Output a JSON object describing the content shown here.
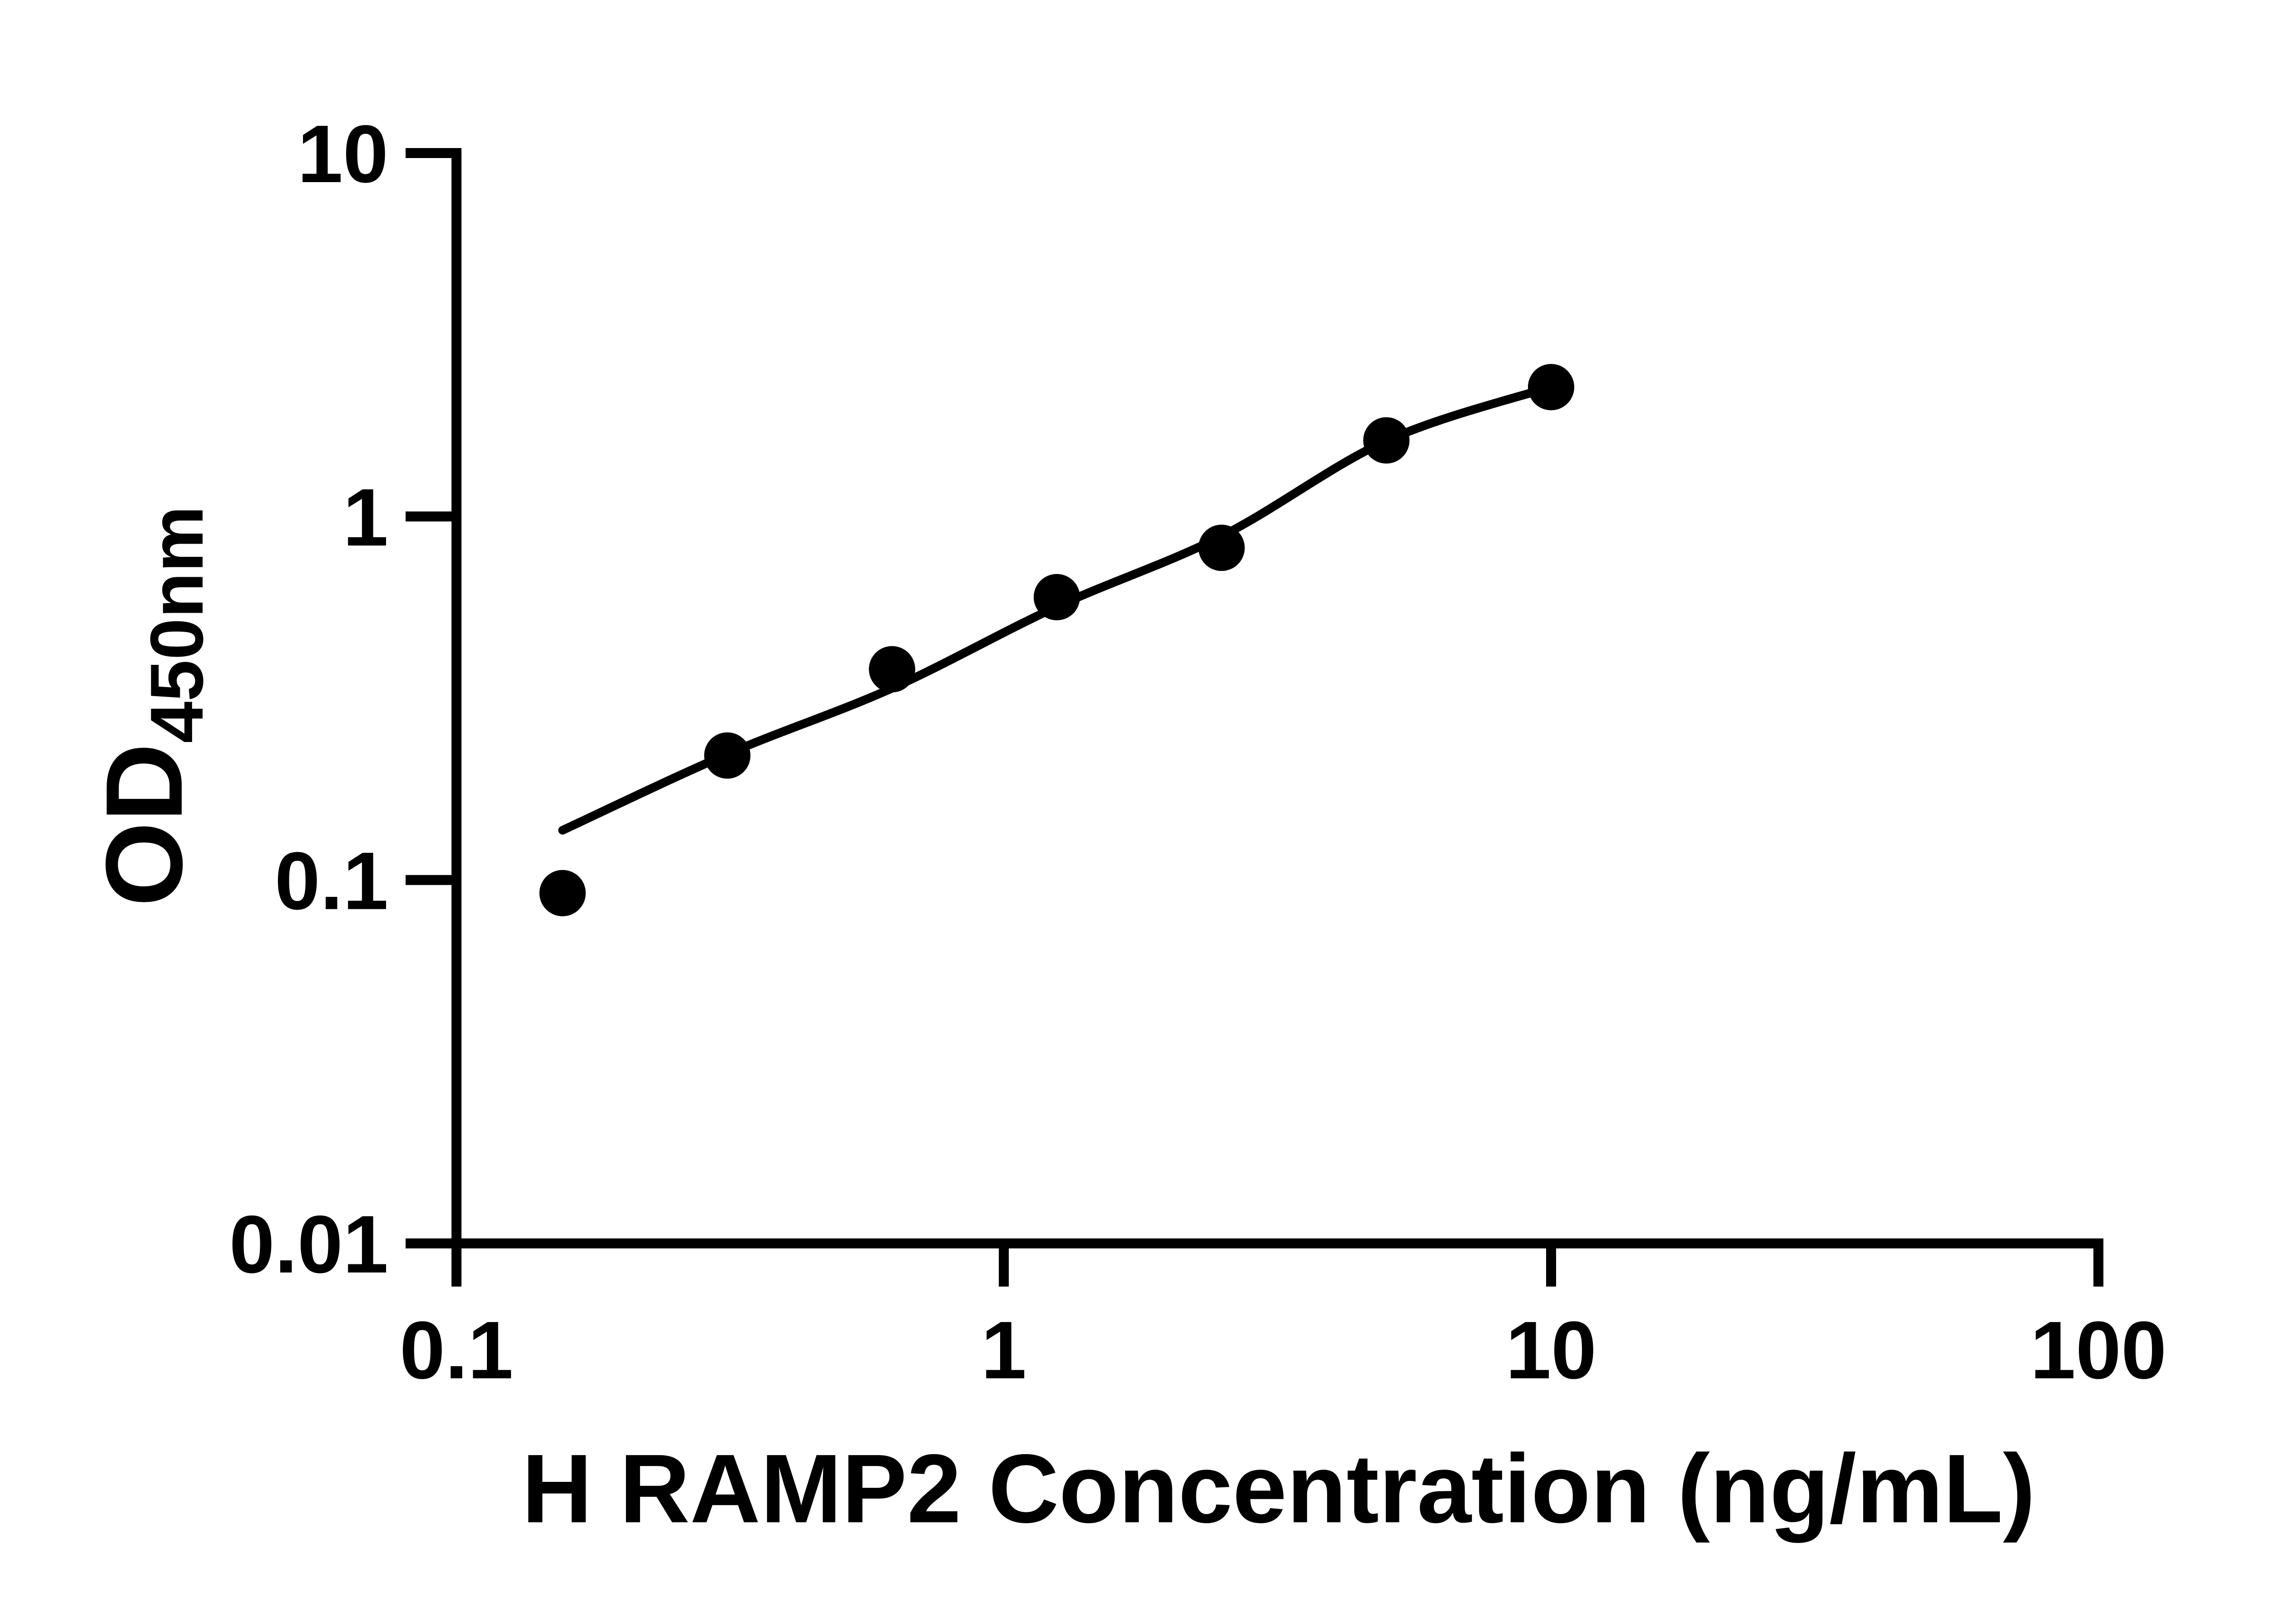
{
  "chart_data": {
    "type": "scatter",
    "title": "",
    "xlabel": "H RAMP2 Concentration (ng/mL)",
    "ylabel": "OD450nm",
    "ylabel_main": "OD",
    "ylabel_sub": "450nm",
    "x_scale": "log",
    "y_scale": "log",
    "xlim": [
      0.1,
      100
    ],
    "ylim": [
      0.01,
      10
    ],
    "x_tick_values": [
      0.1,
      1,
      10,
      100
    ],
    "x_tick_labels": [
      "0.1",
      "1",
      "10",
      "100"
    ],
    "y_tick_values": [
      10,
      1,
      0.1,
      0.01
    ],
    "y_tick_labels": [
      "10",
      "1",
      "0.1",
      "0.01"
    ],
    "grid": false,
    "legend_position": "none",
    "series": [
      {
        "name": "standard-points",
        "type": "scatter",
        "marker": "circle",
        "x": [
          0.15625,
          0.3125,
          0.625,
          1.25,
          2.5,
          5,
          10
        ],
        "y": [
          0.092,
          0.22,
          0.38,
          0.6,
          0.82,
          1.62,
          2.27
        ]
      },
      {
        "name": "fit-line",
        "type": "line",
        "x": [
          0.15625,
          0.3125,
          0.625,
          1.25,
          2.5,
          5,
          10
        ],
        "y": [
          0.137,
          0.222,
          0.337,
          0.565,
          0.883,
          1.615,
          2.274
        ]
      }
    ],
    "colors": {
      "foreground": "#000000",
      "background": "#ffffff"
    }
  }
}
